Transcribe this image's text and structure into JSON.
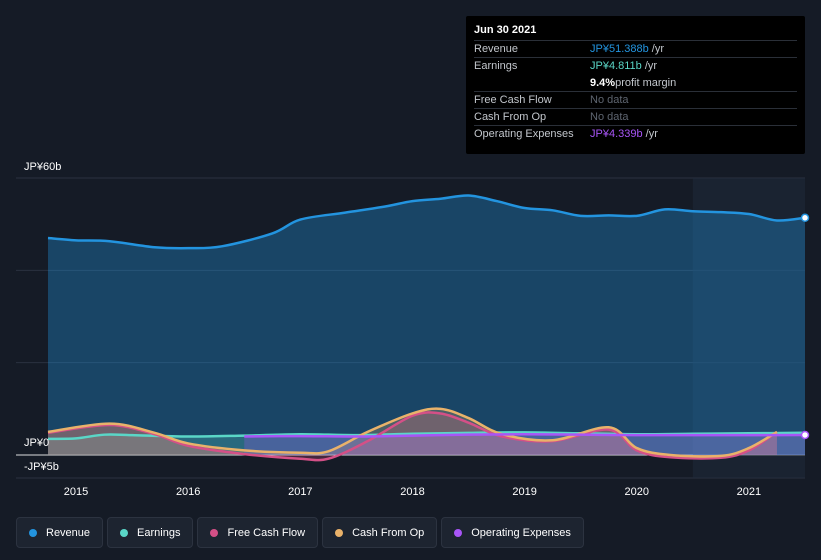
{
  "tooltip": {
    "date": "Jun 30 2021",
    "rows": {
      "revenue": {
        "label": "Revenue",
        "value": "JP¥51.388b",
        "unit": " /yr"
      },
      "earnings": {
        "label": "Earnings",
        "value": "JP¥4.811b",
        "unit": " /yr"
      },
      "margin": {
        "value": "9.4%",
        "text": " profit margin"
      },
      "fcf": {
        "label": "Free Cash Flow",
        "value": "No data"
      },
      "cfo": {
        "label": "Cash From Op",
        "value": "No data"
      },
      "opex": {
        "label": "Operating Expenses",
        "value": "JP¥4.339b",
        "unit": " /yr"
      }
    }
  },
  "legend": [
    "Revenue",
    "Earnings",
    "Free Cash Flow",
    "Cash From Op",
    "Operating Expenses"
  ],
  "colors": {
    "revenue": "#2394df",
    "earnings": "#5ad6c7",
    "fcf": "#d45087",
    "cfo": "#e9b26a",
    "opex": "#a855f7"
  },
  "chart_data": {
    "type": "area",
    "y_tick_labels": [
      "JP¥60b",
      "JP¥0",
      "-JP¥5b"
    ],
    "ylim": [
      -5,
      60
    ],
    "x_tick_labels": [
      "2015",
      "2016",
      "2017",
      "2018",
      "2019",
      "2020",
      "2021"
    ],
    "xlim": [
      2014.6,
      2021.5
    ],
    "series": [
      {
        "name": "Revenue",
        "x": [
          2014.75,
          2015.0,
          2015.3,
          2015.7,
          2016.0,
          2016.3,
          2016.75,
          2017.0,
          2017.4,
          2017.75,
          2018.0,
          2018.25,
          2018.5,
          2018.75,
          2019.0,
          2019.25,
          2019.5,
          2019.75,
          2020.0,
          2020.25,
          2020.5,
          2020.75,
          2021.0,
          2021.25,
          2021.5
        ],
        "values": [
          47.0,
          46.5,
          46.3,
          45.0,
          44.8,
          45.2,
          48.0,
          51.0,
          52.5,
          53.8,
          55.0,
          55.5,
          56.2,
          55.0,
          53.5,
          53.0,
          51.8,
          51.9,
          51.8,
          53.2,
          52.8,
          52.6,
          52.2,
          50.8,
          51.388
        ]
      },
      {
        "name": "Earnings",
        "x": [
          2014.75,
          2015.0,
          2015.25,
          2015.5,
          2016.0,
          2016.5,
          2017.0,
          2017.5,
          2018.0,
          2018.5,
          2019.0,
          2019.5,
          2020.0,
          2020.5,
          2021.0,
          2021.5
        ],
        "values": [
          3.5,
          3.6,
          4.4,
          4.3,
          4.0,
          4.2,
          4.5,
          4.3,
          4.6,
          4.8,
          4.9,
          4.7,
          4.5,
          4.6,
          4.7,
          4.811
        ]
      },
      {
        "name": "Free Cash Flow",
        "x": [
          2014.75,
          2015.3,
          2015.7,
          2016.0,
          2016.5,
          2017.0,
          2017.25,
          2017.6,
          2018.0,
          2018.25,
          2018.5,
          2018.8,
          2019.25,
          2019.75,
          2020.0,
          2020.3,
          2020.75,
          2021.0,
          2021.25
        ],
        "values": [
          4.8,
          6.5,
          4.5,
          2.0,
          0.2,
          -0.8,
          -0.8,
          3.0,
          8.5,
          9.0,
          7.0,
          4.0,
          3.0,
          5.5,
          1.0,
          -0.5,
          -0.6,
          1.0,
          5.0
        ]
      },
      {
        "name": "Cash From Op",
        "x": [
          2014.75,
          2015.3,
          2015.7,
          2016.0,
          2016.5,
          2017.0,
          2017.25,
          2017.6,
          2018.0,
          2018.25,
          2018.5,
          2018.8,
          2019.25,
          2019.75,
          2020.0,
          2020.3,
          2020.75,
          2021.0,
          2021.25
        ],
        "values": [
          5.0,
          6.8,
          4.8,
          2.5,
          1.0,
          0.5,
          0.8,
          5.0,
          9.0,
          10.0,
          8.0,
          4.5,
          3.2,
          6.0,
          1.5,
          0.0,
          -0.2,
          1.5,
          5.0
        ]
      },
      {
        "name": "Operating Expenses",
        "x": [
          2016.5,
          2017.0,
          2017.5,
          2018.0,
          2018.5,
          2019.0,
          2019.5,
          2020.0,
          2020.5,
          2021.0,
          2021.5
        ],
        "values": [
          4.0,
          4.1,
          4.0,
          4.2,
          4.4,
          4.5,
          4.4,
          4.3,
          4.3,
          4.3,
          4.339
        ]
      }
    ],
    "highlight_range": [
      2020.5,
      2021.5
    ],
    "grid": true
  }
}
